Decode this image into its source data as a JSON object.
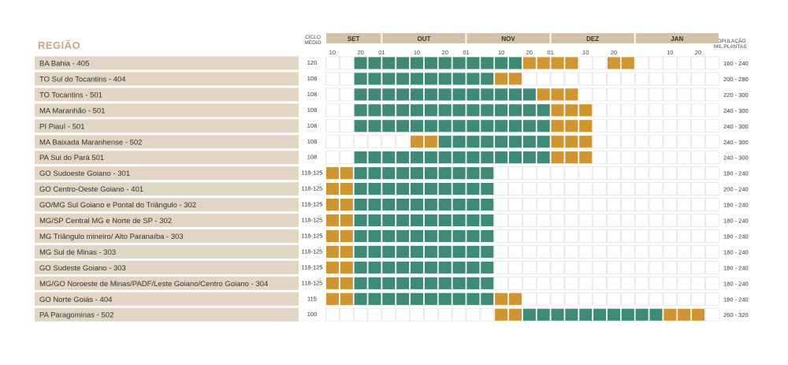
{
  "header": {
    "region_title": "REGIÃO",
    "cycle_label_1": "CICLO",
    "cycle_label_2": "MÉDIO",
    "pop_label_1": "POPULAÇÃO",
    "pop_label_2": "MIL PLANTAS"
  },
  "colors": {
    "label_bg": "#e2d5c4",
    "month_bg": "#d4c2a8",
    "cell_border": "#e4e4e4",
    "green": "#3d8a76",
    "orange": "#d1952f",
    "region_title": "#c9a97a"
  },
  "chart_data": {
    "type": "table",
    "months": [
      "SET",
      "OUT",
      "NOV",
      "DEZ",
      "JAN"
    ],
    "day_labels": [
      "10",
      "20",
      "01",
      "10",
      "20",
      "01",
      "10",
      "20",
      "01",
      "10",
      "20",
      "10",
      "20"
    ],
    "legend": [],
    "rows": [
      {
        "region": "BA Bahia - 405",
        "cycle": "120",
        "population": "160 - 240",
        "orange": [
          [
            14,
            17
          ],
          [
            20,
            21
          ]
        ],
        "green": [
          [
            2,
            13
          ]
        ]
      },
      {
        "region": "TO Sul do Tocantins - 404",
        "cycle": "108",
        "population": "200 - 280",
        "orange": [
          [
            12,
            13
          ]
        ],
        "green": [
          [
            2,
            11
          ]
        ]
      },
      {
        "region": "TO Tocantins - 501",
        "cycle": "108",
        "population": "220 - 300",
        "orange": [
          [
            15,
            17
          ]
        ],
        "green": [
          [
            2,
            14
          ]
        ]
      },
      {
        "region": "MA Maranhão - 501",
        "cycle": "108",
        "population": "240 - 300",
        "orange": [
          [
            16,
            18
          ]
        ],
        "green": [
          [
            2,
            15
          ]
        ]
      },
      {
        "region": "PI Piauí - 501",
        "cycle": "108",
        "population": "240 - 300",
        "orange": [
          [
            16,
            18
          ]
        ],
        "green": [
          [
            2,
            15
          ]
        ]
      },
      {
        "region": "MA Baixada Maranhense - 502",
        "cycle": "108",
        "population": "240 - 300",
        "orange": [
          [
            6,
            7
          ],
          [
            16,
            18
          ]
        ],
        "green": [
          [
            8,
            15
          ]
        ]
      },
      {
        "region": "PA Sul do Pará  501",
        "cycle": "108",
        "population": "240 - 300",
        "orange": [
          [
            16,
            18
          ]
        ],
        "green": [
          [
            2,
            15
          ]
        ]
      },
      {
        "region": "GO Sudoeste Goiano - 301",
        "cycle": "118-125",
        "population": "180 - 240",
        "orange": [
          [
            0,
            1
          ]
        ],
        "green": [
          [
            2,
            11
          ]
        ]
      },
      {
        "region": "GO Centro-Oeste Goiano - 401",
        "cycle": "118-125",
        "population": "200 - 240",
        "orange": [
          [
            0,
            1
          ]
        ],
        "green": [
          [
            2,
            11
          ]
        ]
      },
      {
        "region": "GO/MG Sul Goiano e Pontal do Triângulo - 302",
        "cycle": "118-125",
        "population": "180 - 240",
        "orange": [
          [
            0,
            1
          ]
        ],
        "green": [
          [
            2,
            11
          ]
        ]
      },
      {
        "region": "MG/SP Central MG e Norte de SP - 302",
        "cycle": "118-125",
        "population": "180 - 240",
        "orange": [
          [
            0,
            1
          ]
        ],
        "green": [
          [
            2,
            11
          ]
        ]
      },
      {
        "region": "MG Triângulo mineiro/ Alto Paranaíba - 303",
        "cycle": "118-125",
        "population": "180 - 240",
        "orange": [
          [
            0,
            1
          ]
        ],
        "green": [
          [
            2,
            11
          ]
        ]
      },
      {
        "region": "MG Sul de Minas - 303",
        "cycle": "118-125",
        "population": "180 - 240",
        "orange": [
          [
            0,
            1
          ]
        ],
        "green": [
          [
            2,
            11
          ]
        ]
      },
      {
        "region": "GO Sudeste Goiano - 303",
        "cycle": "118-125",
        "population": "180 - 240",
        "orange": [
          [
            0,
            1
          ]
        ],
        "green": [
          [
            2,
            11
          ]
        ]
      },
      {
        "region": "MG/GO Noroeste de Minas/PADF/Leste Goiano/Centro Goiano - 304",
        "cycle": "118-125",
        "population": "180 - 240",
        "orange": [
          [
            0,
            1
          ]
        ],
        "green": [
          [
            2,
            11
          ]
        ]
      },
      {
        "region": "GO Norte Goiás - 404",
        "cycle": "115",
        "population": "180 - 240",
        "orange": [
          [
            0,
            1
          ],
          [
            12,
            13
          ]
        ],
        "green": [
          [
            2,
            11
          ]
        ]
      },
      {
        "region": "PA Paragominas - 502",
        "cycle": "100",
        "population": "260 - 320",
        "orange": [
          [
            12,
            13
          ],
          [
            24,
            26
          ]
        ],
        "green": [
          [
            14,
            23
          ]
        ]
      }
    ]
  }
}
